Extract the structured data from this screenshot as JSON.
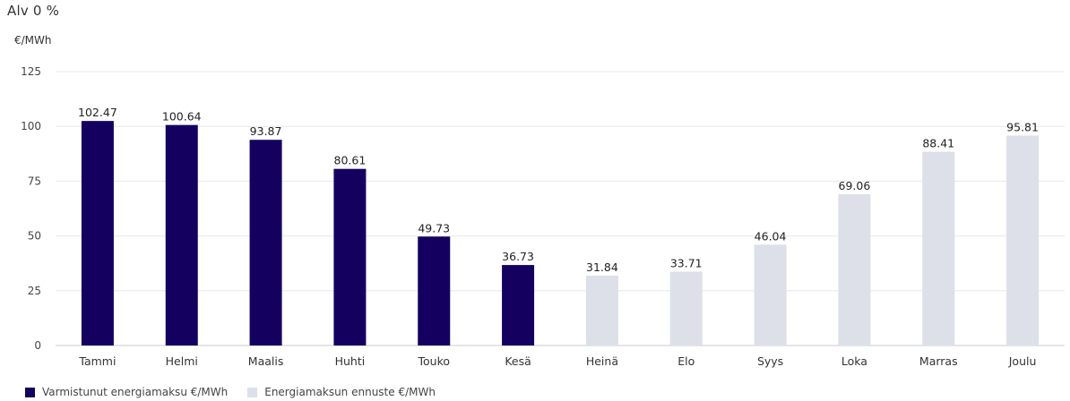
{
  "chart_data": {
    "type": "bar",
    "title": "Alv 0 %",
    "ylabel": "€/MWh",
    "xlabel": "",
    "ylim": [
      0,
      125
    ],
    "yticks": [
      0,
      25,
      50,
      75,
      100,
      125
    ],
    "grid": true,
    "legend_placement": "bottom-left",
    "categories": [
      "Tammi",
      "Helmi",
      "Maalis",
      "Huhti",
      "Touko",
      "Kesä",
      "Heinä",
      "Elo",
      "Syys",
      "Loka",
      "Marras",
      "Joulu"
    ],
    "series": [
      {
        "name": "Varmistunut energiamaksu €/MWh",
        "color": "#14005f",
        "values": [
          102.47,
          100.64,
          93.87,
          80.61,
          49.73,
          36.73,
          null,
          null,
          null,
          null,
          null,
          null
        ],
        "labels": [
          "102.47",
          "100.64",
          "93.87",
          "80.61",
          "49.73",
          "36.73",
          null,
          null,
          null,
          null,
          null,
          null
        ]
      },
      {
        "name": "Energiamaksun ennuste €/MWh",
        "color": "#dddfe9",
        "values": [
          null,
          null,
          null,
          null,
          null,
          null,
          31.84,
          33.71,
          46.04,
          69.06,
          88.41,
          95.81
        ],
        "labels": [
          null,
          null,
          null,
          null,
          null,
          null,
          "31.84",
          "33.71",
          "46.04",
          "69.06",
          "88.41",
          "95.81"
        ]
      }
    ]
  }
}
